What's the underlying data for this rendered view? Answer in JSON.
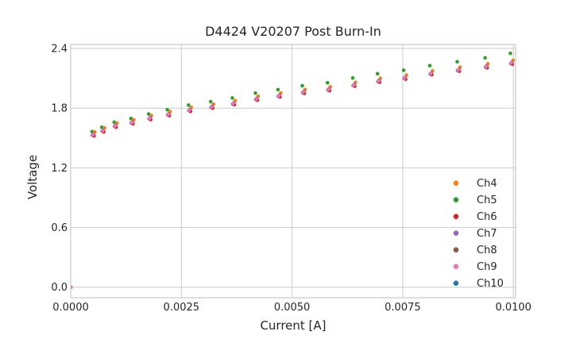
{
  "chart_data": {
    "type": "scatter",
    "title": "D4424 V20207 Post Burn-In",
    "xlabel": "Current [A]",
    "ylabel": "Voltage",
    "xlim": [
      0,
      0.01005
    ],
    "ylim": [
      -0.106,
      2.44
    ],
    "grid": true,
    "legend_position": "inside-right",
    "xticks": {
      "values": [
        0,
        0.0025,
        0.005,
        0.0075,
        0.01
      ],
      "labels": [
        "0.0000",
        "0.0025",
        "0.0050",
        "0.0075",
        "0.0100"
      ]
    },
    "yticks": {
      "values": [
        0.0,
        0.6,
        1.2,
        1.8,
        2.4
      ],
      "labels": [
        "0.0",
        "0.6",
        "1.2",
        "1.8",
        "2.4"
      ]
    },
    "x": [
      0,
      0.0005,
      0.00072,
      0.001,
      0.00138,
      0.00178,
      0.0022,
      0.00268,
      0.00318,
      0.00367,
      0.00419,
      0.0047,
      0.00525,
      0.00582,
      0.00639,
      0.00695,
      0.00754,
      0.00813,
      0.00875,
      0.00938,
      0.00995
    ],
    "series": [
      {
        "name": "Ch4",
        "color": "#ff7f0e",
        "values": [
          0,
          1.533,
          1.573,
          1.621,
          1.655,
          1.697,
          1.737,
          1.78,
          1.812,
          1.846,
          1.892,
          1.924,
          1.96,
          1.987,
          2.032,
          2.072,
          2.104,
          2.147,
          2.183,
          2.218,
          2.253
        ],
        "note": "visually coincident with Ch9, mostly hidden"
      },
      {
        "name": "Ch5",
        "color": "#2ca02c",
        "values": [
          0,
          1.565,
          1.608,
          1.659,
          1.696,
          1.741,
          1.784,
          1.83,
          1.865,
          1.902,
          1.951,
          1.986,
          2.025,
          2.055,
          2.103,
          2.146,
          2.181,
          2.227,
          2.266,
          2.305,
          2.351
        ],
        "note": "distinctly above the other channels"
      },
      {
        "name": "Ch6",
        "color": "#d62728",
        "values": [
          0,
          1.533,
          1.573,
          1.621,
          1.655,
          1.697,
          1.737,
          1.78,
          1.812,
          1.846,
          1.892,
          1.924,
          1.96,
          1.987,
          2.032,
          2.072,
          2.104,
          2.147,
          2.183,
          2.218,
          2.253
        ],
        "note": "visually coincident with Ch9, fringe visible lower-right"
      },
      {
        "name": "Ch7",
        "color": "#9467bd",
        "values": [
          0,
          1.533,
          1.573,
          1.621,
          1.655,
          1.697,
          1.737,
          1.78,
          1.812,
          1.846,
          1.892,
          1.924,
          1.96,
          1.987,
          2.032,
          2.072,
          2.104,
          2.147,
          2.183,
          2.218,
          2.253
        ],
        "note": "visually coincident with Ch9, hidden"
      },
      {
        "name": "Ch8",
        "color": "#8c564b",
        "values": [
          0,
          1.533,
          1.573,
          1.621,
          1.655,
          1.697,
          1.737,
          1.78,
          1.812,
          1.846,
          1.892,
          1.924,
          1.96,
          1.987,
          2.032,
          2.072,
          2.104,
          2.147,
          2.183,
          2.218,
          2.253
        ],
        "note": "visually coincident with Ch9, hidden"
      },
      {
        "name": "Ch9",
        "color": "#e377c2",
        "values": [
          0,
          1.533,
          1.573,
          1.621,
          1.655,
          1.697,
          1.737,
          1.78,
          1.812,
          1.846,
          1.892,
          1.924,
          1.96,
          1.987,
          2.032,
          2.072,
          2.104,
          2.147,
          2.183,
          2.218,
          2.253
        ],
        "note": "drawn on top"
      },
      {
        "name": "Ch10",
        "color": "#1f77b4",
        "values": [
          0,
          1.533,
          1.573,
          1.621,
          1.655,
          1.697,
          1.737,
          1.78,
          1.812,
          1.846,
          1.892,
          1.924,
          1.96,
          1.987,
          2.032,
          2.072,
          2.104,
          2.147,
          2.183,
          2.218,
          2.253
        ],
        "note": "visually coincident with Ch9, hidden"
      }
    ]
  }
}
